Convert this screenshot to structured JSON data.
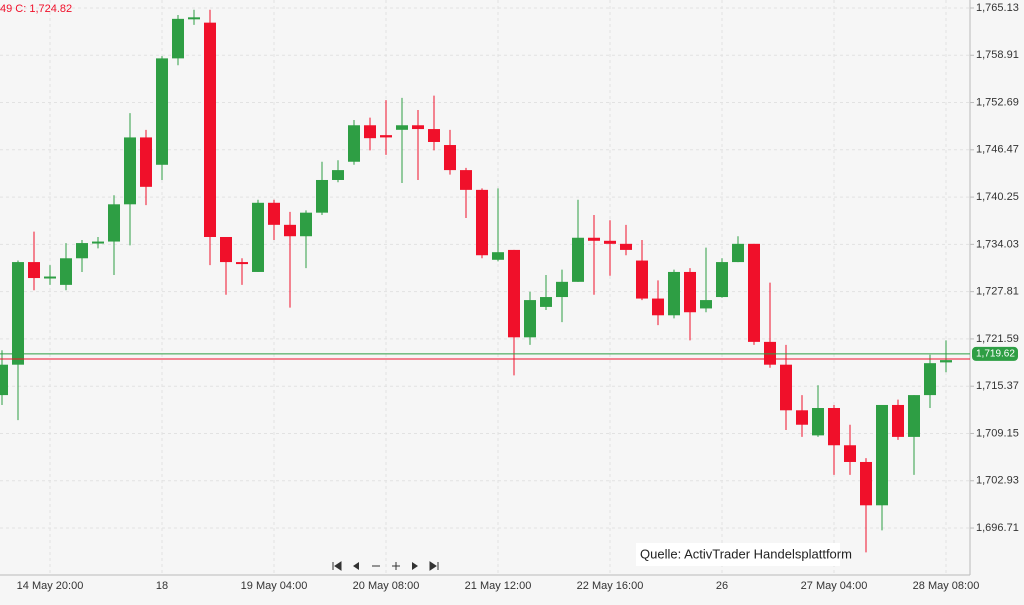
{
  "chart_data": {
    "type": "candlestick",
    "header": "49 C: 1,724.82",
    "source": "Quelle: ActivTrader Handelsplattform",
    "up_color": "#2e9e44",
    "down_color": "#f0102a",
    "categories": [
      null,
      null,
      null,
      "14 May 20:00",
      null,
      null,
      null,
      null,
      null,
      null,
      "18",
      null,
      null,
      null,
      null,
      null,
      null,
      "19 May 04:00",
      null,
      null,
      null,
      null,
      null,
      null,
      "20 May 08:00",
      null,
      null,
      null,
      null,
      null,
      null,
      "21 May 12:00",
      null,
      null,
      null,
      null,
      null,
      null,
      "22 May 16:00",
      null,
      null,
      null,
      null,
      null,
      null,
      "26",
      null,
      null,
      null,
      null,
      null,
      null,
      "27 May 04:00",
      null,
      null,
      null,
      null,
      null,
      null,
      "28 May 08:00"
    ],
    "open": [
      1714.2,
      1718.2,
      1731.7,
      1729.7,
      1728.7,
      1732.2,
      1734.2,
      1734.4,
      1739.3,
      1748.1,
      1744.5,
      1758.5,
      1763.7,
      1763.2,
      1735.0,
      1731.7,
      1730.4,
      1739.5,
      1736.6,
      1735.1,
      1738.2,
      1742.5,
      1744.9,
      1749.7,
      1748.4,
      1749.1,
      1749.7,
      1749.2,
      1747.1,
      1743.8,
      1741.2,
      1732.0,
      1733.3,
      1721.8,
      1725.8,
      1727.1,
      1729.1,
      1734.9,
      1734.5,
      1734.1,
      1731.9,
      1726.9,
      1724.7,
      1730.4,
      1725.6,
      1727.1,
      1731.7,
      1734.1,
      1721.2,
      1718.2,
      1712.2,
      1708.9,
      1712.5,
      1707.6,
      1705.4,
      1699.7,
      1712.9,
      1708.7,
      1714.2,
      1718.5
    ],
    "high": [
      1720.1,
      1731.9,
      1735.7,
      1731.3,
      1734.2,
      1734.6,
      1735.0,
      1740.5,
      1751.3,
      1749.1,
      1758.8,
      1764.2,
      1764.9,
      1764.9,
      1735.0,
      1732.2,
      1739.9,
      1739.9,
      1738.3,
      1738.5,
      1744.9,
      1745.1,
      1750.4,
      1750.7,
      1753.0,
      1753.3,
      1751.7,
      1753.6,
      1749.1,
      1744.1,
      1741.4,
      1741.4,
      1733.3,
      1727.8,
      1730.0,
      1730.7,
      1739.9,
      1737.9,
      1737.2,
      1736.6,
      1734.6,
      1729.3,
      1730.7,
      1730.9,
      1733.6,
      1732.2,
      1735.1,
      1734.1,
      1729.0,
      1720.8,
      1714.2,
      1715.5,
      1712.9,
      1710.3,
      1705.9,
      1712.9,
      1713.6,
      1714.2,
      1719.5,
      1721.4
    ],
    "low": [
      1712.9,
      1710.9,
      1728.0,
      1728.7,
      1728.0,
      1730.4,
      1733.5,
      1730.0,
      1733.9,
      1739.2,
      1742.5,
      1757.6,
      1762.9,
      1731.3,
      1727.4,
      1728.7,
      1730.4,
      1734.6,
      1725.7,
      1730.9,
      1737.9,
      1742.2,
      1744.5,
      1746.4,
      1745.8,
      1742.1,
      1742.5,
      1746.4,
      1743.2,
      1737.5,
      1732.2,
      1731.8,
      1716.8,
      1720.8,
      1725.4,
      1723.8,
      1729.1,
      1727.4,
      1729.9,
      1732.6,
      1726.7,
      1723.4,
      1724.3,
      1721.4,
      1725.1,
      1727.0,
      1731.7,
      1720.8,
      1717.8,
      1709.6,
      1708.7,
      1708.7,
      1703.7,
      1703.7,
      1693.5,
      1696.4,
      1708.3,
      1703.7,
      1712.5,
      1717.2
    ],
    "close": [
      1718.2,
      1731.7,
      1729.6,
      1729.8,
      1732.2,
      1734.2,
      1734.4,
      1739.3,
      1748.1,
      1741.6,
      1758.5,
      1763.7,
      1763.9,
      1735.0,
      1731.7,
      1731.5,
      1739.5,
      1736.6,
      1735.1,
      1738.2,
      1742.5,
      1743.8,
      1749.7,
      1748.0,
      1748.1,
      1749.7,
      1749.2,
      1747.5,
      1743.8,
      1741.2,
      1732.6,
      1733.0,
      1721.8,
      1726.7,
      1727.1,
      1729.1,
      1734.9,
      1734.5,
      1734.1,
      1733.3,
      1726.9,
      1724.7,
      1730.4,
      1725.1,
      1726.7,
      1731.7,
      1734.1,
      1721.2,
      1718.2,
      1712.2,
      1710.3,
      1712.5,
      1707.6,
      1705.4,
      1699.7,
      1712.9,
      1708.7,
      1714.2,
      1718.4,
      1718.8
    ],
    "ylim": [
      1690.53,
      1766.18
    ],
    "yticks": [
      {
        "value": 1765.13,
        "label": "1,765.13"
      },
      {
        "value": 1758.91,
        "label": "1,758.91"
      },
      {
        "value": 1752.69,
        "label": "1,752.69"
      },
      {
        "value": 1746.47,
        "label": "1,746.47"
      },
      {
        "value": 1740.25,
        "label": "1,740.25"
      },
      {
        "value": 1734.03,
        "label": "1,734.03"
      },
      {
        "value": 1727.81,
        "label": "1,727.81"
      },
      {
        "value": 1721.59,
        "label": "1,721.59"
      },
      {
        "value": 1715.37,
        "label": "1,715.37"
      },
      {
        "value": 1709.15,
        "label": "1,709.15"
      },
      {
        "value": 1702.93,
        "label": "1,702.93"
      },
      {
        "value": 1696.71,
        "label": "1,696.71"
      }
    ],
    "price_lines": [
      {
        "value": 1719.62,
        "label": "1,719.62",
        "color": "#2e9e44"
      },
      {
        "value": 1718.95,
        "color": "#f0102a"
      }
    ],
    "grid": true
  }
}
